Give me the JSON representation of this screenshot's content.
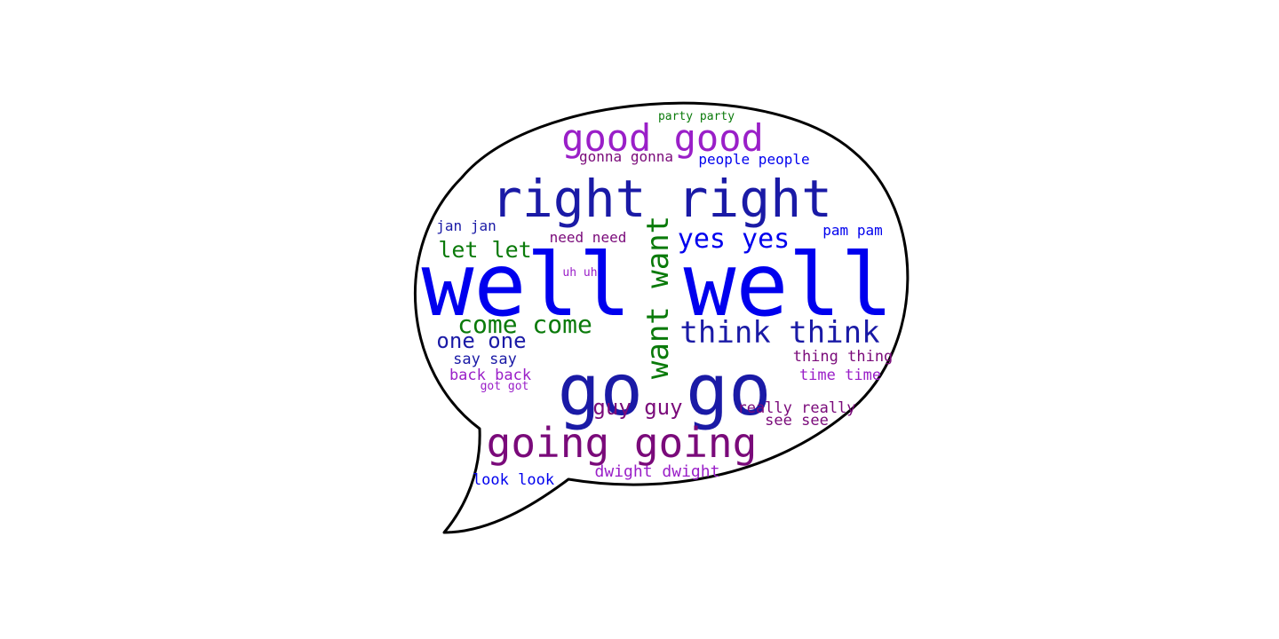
{
  "colors": {
    "blue": "#0000ee",
    "dark_blue": "#1a1aa6",
    "green": "#0a7a0a",
    "purple": "#9a1fc8",
    "dark_purple": "#7a0a7a",
    "outline": "#000000",
    "background": "#ffffff"
  },
  "words": [
    {
      "text": "well well",
      "color": "blue"
    },
    {
      "text": "go go",
      "color": "dark_blue"
    },
    {
      "text": "right right",
      "color": "dark_blue"
    },
    {
      "text": "going going",
      "color": "dark_purple"
    },
    {
      "text": "good good",
      "color": "purple"
    },
    {
      "text": "want want",
      "color": "green"
    },
    {
      "text": "think think",
      "color": "dark_blue"
    },
    {
      "text": "yes yes",
      "color": "blue"
    },
    {
      "text": "come come",
      "color": "green"
    },
    {
      "text": "let let",
      "color": "green"
    },
    {
      "text": "one one",
      "color": "dark_blue"
    },
    {
      "text": "guy guy",
      "color": "dark_purple"
    },
    {
      "text": "people people",
      "color": "blue"
    },
    {
      "text": "gonna gonna",
      "color": "dark_purple"
    },
    {
      "text": "party party",
      "color": "green"
    },
    {
      "text": "jan jan",
      "color": "dark_blue"
    },
    {
      "text": "need need",
      "color": "dark_purple"
    },
    {
      "text": "pam pam",
      "color": "blue"
    },
    {
      "text": "uh uh",
      "color": "purple"
    },
    {
      "text": "say say",
      "color": "dark_blue"
    },
    {
      "text": "back back",
      "color": "purple"
    },
    {
      "text": "got got",
      "color": "purple"
    },
    {
      "text": "thing thing",
      "color": "dark_purple"
    },
    {
      "text": "time time",
      "color": "purple"
    },
    {
      "text": "really really",
      "color": "dark_purple"
    },
    {
      "text": "see see",
      "color": "dark_purple"
    },
    {
      "text": "dwight dwight",
      "color": "purple"
    },
    {
      "text": "look look",
      "color": "blue"
    }
  ]
}
